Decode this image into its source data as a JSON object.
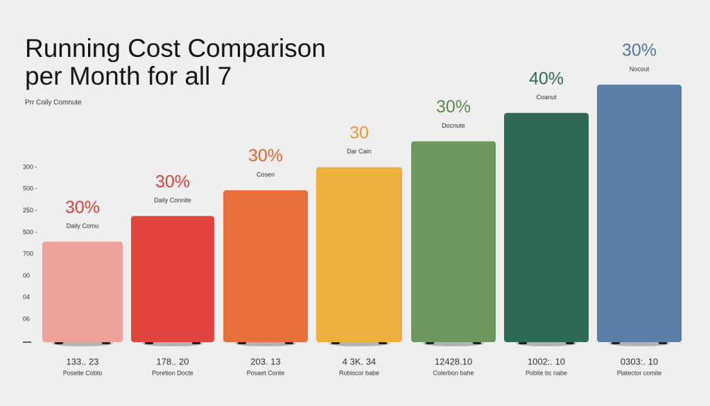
{
  "chart_data": {
    "type": "bar",
    "title_lines": [
      "Running Cost Comparison",
      "per Month for all 7"
    ],
    "subtitle": "Prr Coily Comnute",
    "y_axis_labels": [
      "300 -",
      "500 -",
      "250 -",
      "500 -",
      "700",
      "00",
      "04",
      "06"
    ],
    "categories": [
      "Poseite Cobto",
      "Poretion Docte",
      "Posaet Conte",
      "Robiscor babe",
      "Colerbon bahe",
      "Pobite bc nabe",
      "Platector comite"
    ],
    "cost_labels": [
      "133.. 23",
      "178.. 20",
      "203. 13",
      "4 3K. 34",
      "12428.10",
      "1002:. 10",
      "0303:. 10"
    ],
    "top_labels": [
      "30%",
      "30%",
      "30%",
      "30",
      "30%",
      "40%",
      "30%"
    ],
    "top_sublabels": [
      "Daily Comu",
      "Daily Connite",
      "Cosen",
      "Dar Cain",
      "Docnute",
      "Coanut",
      "Nocout"
    ],
    "values": [
      39,
      49,
      59,
      68,
      78,
      89,
      100
    ],
    "ylim": [
      0,
      100
    ],
    "colors": [
      "#efa29b",
      "#e0463f",
      "#e8703a",
      "#efb040",
      "#6c985b",
      "#2f6a55",
      "#5a7fa7"
    ],
    "label_colors": [
      "#d9443a",
      "#d9443a",
      "#e2632f",
      "#e89a30",
      "#5e8a50",
      "#2f6a55",
      "#4e77a3"
    ]
  }
}
